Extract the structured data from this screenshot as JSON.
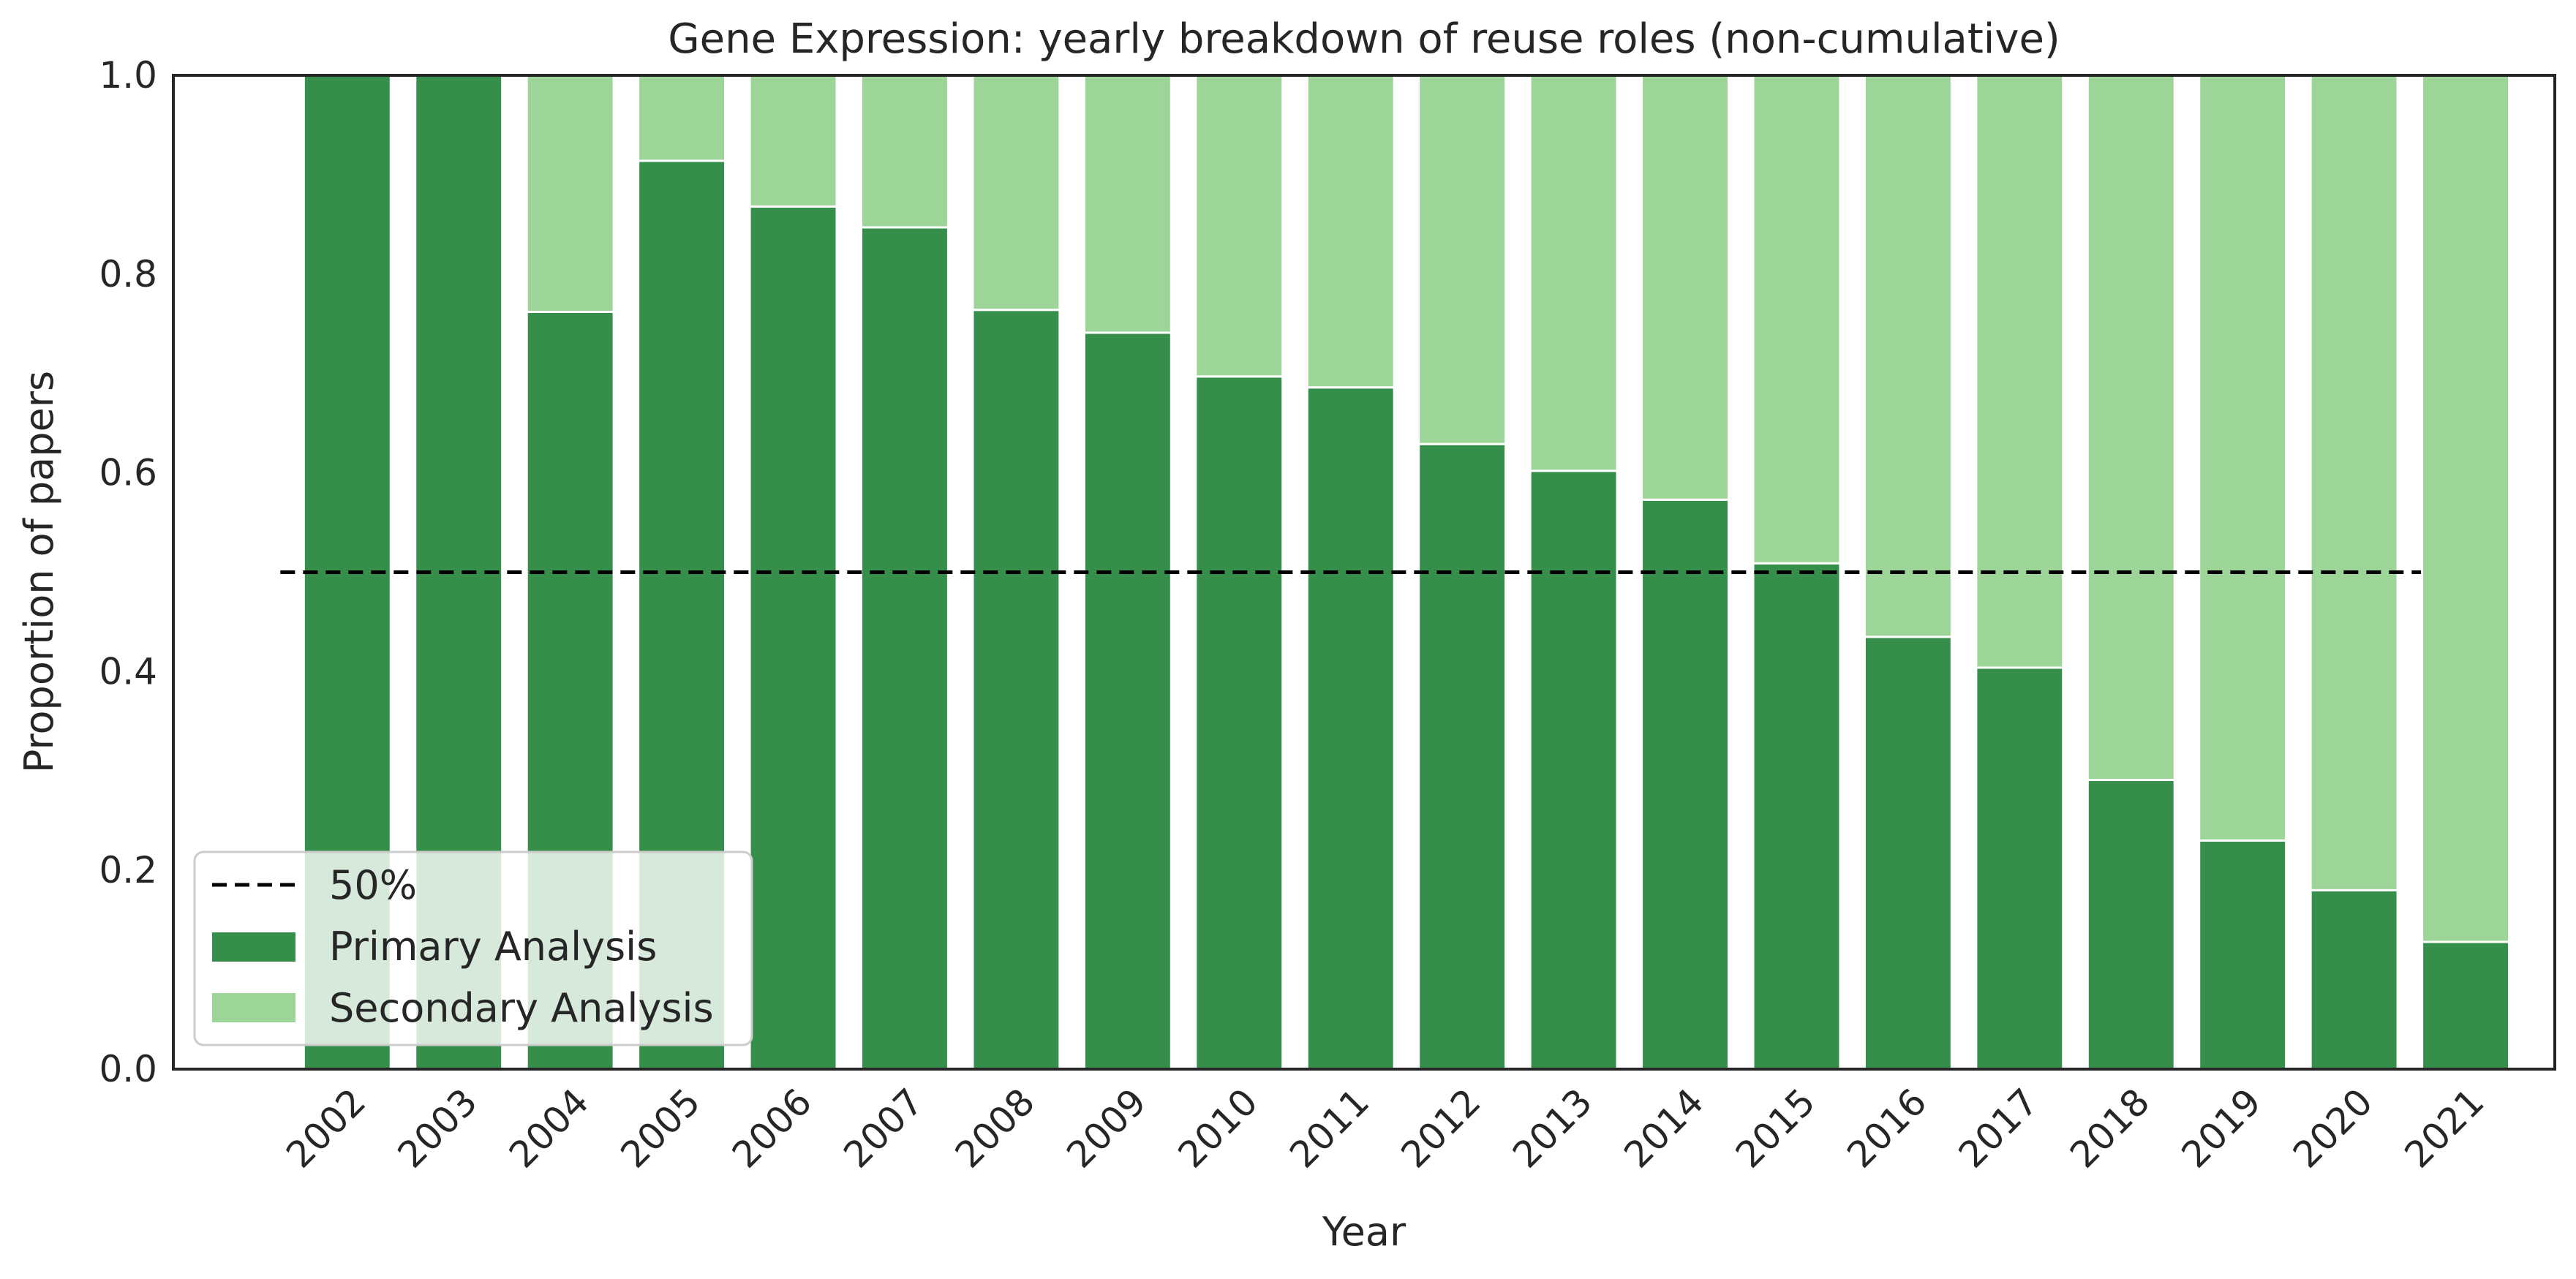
{
  "chart_data": {
    "type": "bar",
    "stacked": true,
    "title": "Gene Expression: yearly breakdown of reuse roles (non-cumulative)",
    "xlabel": "Year",
    "ylabel": "Proportion of papers",
    "ylim": [
      0,
      1
    ],
    "yticks": [
      "0.0",
      "0.2",
      "0.4",
      "0.6",
      "0.8",
      "1.0"
    ],
    "categories": [
      "2002",
      "2003",
      "2004",
      "2005",
      "2006",
      "2007",
      "2008",
      "2009",
      "2010",
      "2011",
      "2012",
      "2013",
      "2014",
      "2015",
      "2016",
      "2017",
      "2018",
      "2019",
      "2020",
      "2021"
    ],
    "series": [
      {
        "name": "Primary Analysis",
        "color": "#358f4a",
        "values": [
          1.0,
          1.0,
          0.762,
          0.914,
          0.868,
          0.847,
          0.764,
          0.741,
          0.697,
          0.686,
          0.629,
          0.602,
          0.573,
          0.509,
          0.435,
          0.404,
          0.291,
          0.23,
          0.18,
          0.128
        ]
      },
      {
        "name": "Secondary Analysis",
        "color": "#9dd497",
        "values": [
          0.0,
          0.0,
          0.238,
          0.086,
          0.132,
          0.153,
          0.236,
          0.259,
          0.303,
          0.314,
          0.371,
          0.398,
          0.427,
          0.491,
          0.565,
          0.596,
          0.709,
          0.77,
          0.82,
          0.872
        ]
      }
    ],
    "reference_line": {
      "name": "50%",
      "value": 0.5,
      "style": "dashed",
      "color": "#000000"
    },
    "legend": {
      "placement": "lower-left",
      "entries": [
        "50%",
        "Primary Analysis",
        "Secondary Analysis"
      ]
    },
    "grid": false
  }
}
